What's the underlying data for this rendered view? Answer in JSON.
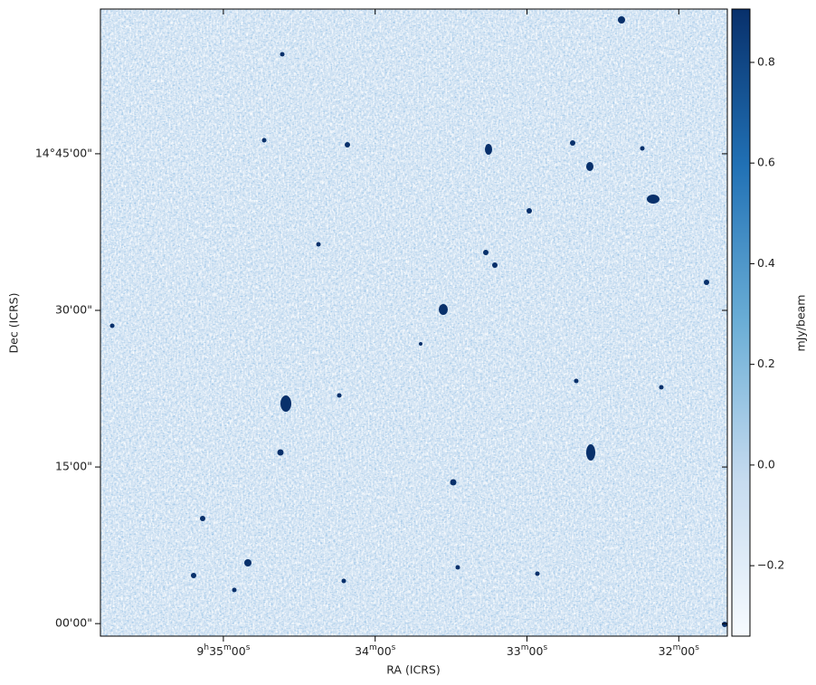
{
  "chart_data": {
    "type": "image",
    "xlabel": "RA (ICRS)",
    "ylabel": "Dec (ICRS)",
    "colorbar_label": "mJy/beam",
    "xlim": [
      575.81,
      571.68
    ],
    "xticks": [
      {
        "value": 575,
        "label": "9h35m00s"
      },
      {
        "value": 574,
        "label": "34m00s"
      },
      {
        "value": 573,
        "label": "33m00s"
      },
      {
        "value": 572,
        "label": "32m00s"
      }
    ],
    "ylim": [
      13.98,
      14.981
    ],
    "yticks": [
      {
        "value": 14.75,
        "label": "14°45'00\""
      },
      {
        "value": 14.5,
        "label": "30'00\""
      },
      {
        "value": 14.25,
        "label": "15'00\""
      },
      {
        "value": 14.0,
        "label": "00'00\""
      }
    ],
    "clim": [
      -0.34,
      0.906
    ],
    "cticks": [
      {
        "value": -0.2,
        "label": "−0.2"
      },
      {
        "value": 0.0,
        "label": "0.0"
      },
      0.2,
      0.4,
      0.6,
      0.8
    ],
    "colormap": [
      "#f7fbff",
      "#c6dbef",
      "#6baed6",
      "#2171b5",
      "#08306b"
    ]
  }
}
